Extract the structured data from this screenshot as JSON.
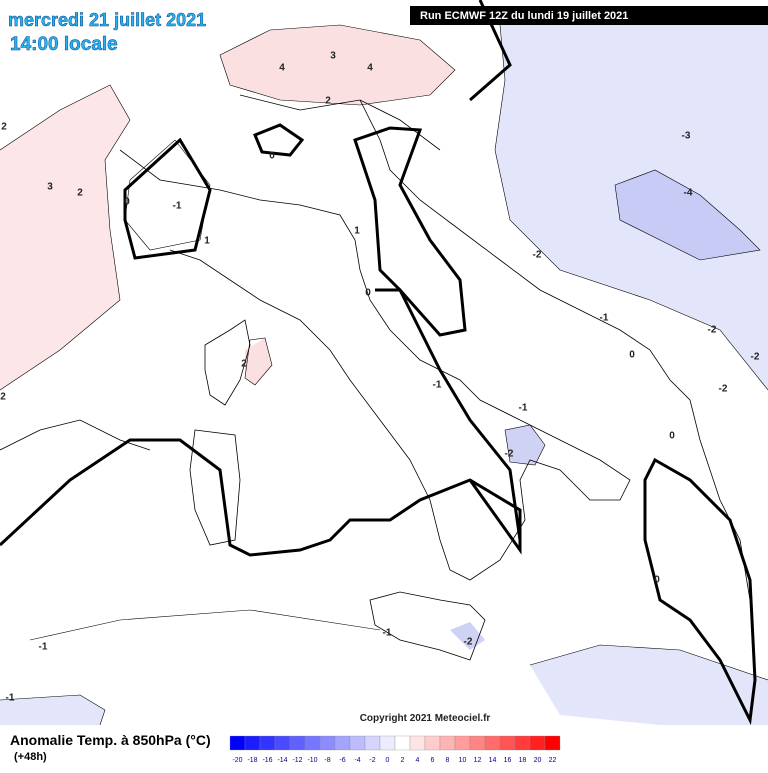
{
  "header": {
    "date": "mercredi 21 juillet 2021",
    "time": "14:00 locale",
    "run": "Run ECMWF 12Z du lundi 19 juillet 2021"
  },
  "contour_labels": [
    "3",
    "4",
    "4",
    "2",
    "0",
    "2",
    "3",
    "2",
    "0",
    "-1",
    "1",
    "1",
    "0",
    "2",
    "2",
    "-1",
    "-1",
    "-2",
    "-3",
    "-4",
    "-2",
    "-1",
    "-2",
    "-2",
    "-2",
    "0",
    "0",
    "0",
    "-1",
    "-2",
    "-1",
    "-1"
  ],
  "copyright": "Copyright 2021 Meteociel.fr",
  "legend": {
    "title": "Anomalie Temp. à 850hPa (°C)",
    "subtitle": "(+48h)",
    "scale": [
      "-20",
      "-18",
      "-16",
      "-14",
      "-12",
      "-10",
      "-8",
      "-6",
      "-4",
      "-2",
      "0",
      "2",
      "4",
      "6",
      "8",
      "10",
      "12",
      "14",
      "16",
      "18",
      "20",
      "22"
    ],
    "colors": [
      "#0000ff",
      "#1c1cff",
      "#3434ff",
      "#4a4aff",
      "#6060ff",
      "#7676ff",
      "#8c8cff",
      "#a4a4ff",
      "#bcbcff",
      "#d4d4ff",
      "#ececff",
      "#ffffff",
      "#ffe4e4",
      "#ffcccc",
      "#ffb4b4",
      "#ff9c9c",
      "#ff8484",
      "#ff6c6c",
      "#ff5454",
      "#ff3c3c",
      "#ff2020",
      "#ff0000"
    ]
  }
}
